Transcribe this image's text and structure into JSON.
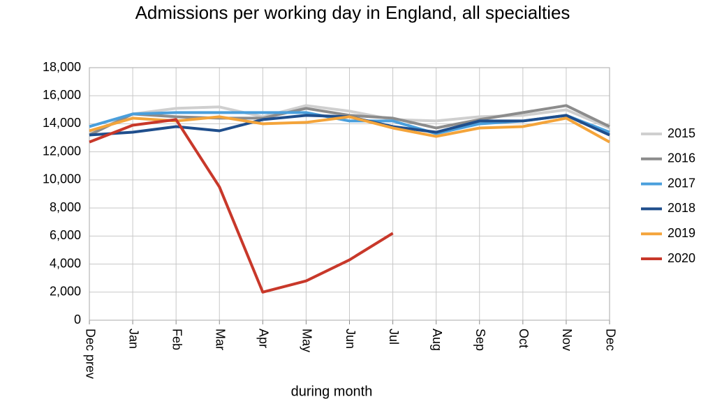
{
  "chart_data": {
    "type": "line",
    "title": "Admissions per working day in England, all specialties",
    "x_label": "during  month",
    "categories": [
      "Dec prev",
      "Jan",
      "Feb",
      "Mar",
      "Apr",
      "May",
      "Jun",
      "Jul",
      "Aug",
      "Sep",
      "Oct",
      "Nov",
      "Dec"
    ],
    "series": [
      {
        "name": "2015",
        "color": "#cfcfcf",
        "values": [
          13300,
          14700,
          15100,
          15200,
          14500,
          15300,
          14900,
          14300,
          14200,
          14500,
          14600,
          15000,
          13700
        ]
      },
      {
        "name": "2016",
        "color": "#8c8c8c",
        "values": [
          13200,
          14700,
          14500,
          14400,
          14400,
          15100,
          14600,
          14400,
          13700,
          14300,
          14800,
          15300,
          13800
        ]
      },
      {
        "name": "2017",
        "color": "#4a9fdc",
        "values": [
          13800,
          14700,
          14800,
          14800,
          14800,
          14800,
          14200,
          14200,
          13300,
          14000,
          14200,
          14600,
          13400
        ]
      },
      {
        "name": "2018",
        "color": "#1f4e8c",
        "values": [
          13200,
          13400,
          13800,
          13500,
          14300,
          14600,
          14500,
          13800,
          13400,
          14200,
          14200,
          14600,
          13200
        ]
      },
      {
        "name": "2019",
        "color": "#f4a43a",
        "values": [
          13500,
          14400,
          14200,
          14500,
          14000,
          14100,
          14500,
          13700,
          13100,
          13700,
          13800,
          14400,
          12700
        ]
      },
      {
        "name": "2020",
        "color": "#c8382a",
        "values": [
          12700,
          13900,
          14300,
          9500,
          2000,
          2800,
          4300,
          6200,
          null,
          null,
          null,
          null,
          null
        ]
      }
    ],
    "ylim": [
      0,
      18000
    ],
    "yticks": [
      0,
      {
        "value": 2000,
        "label": "2,000"
      },
      {
        "value": 4000,
        "label": "4,000"
      },
      {
        "value": 6000,
        "label": "6,000"
      },
      {
        "value": 8000,
        "label": "8,000"
      },
      {
        "value": 10000,
        "label": "10,000"
      },
      {
        "value": 12000,
        "label": "12,000"
      },
      {
        "value": 14000,
        "label": "14,000"
      },
      {
        "value": 16000,
        "label": "16,000"
      },
      {
        "value": 18000,
        "label": "18,000"
      }
    ],
    "grid": true,
    "legend": "right"
  }
}
